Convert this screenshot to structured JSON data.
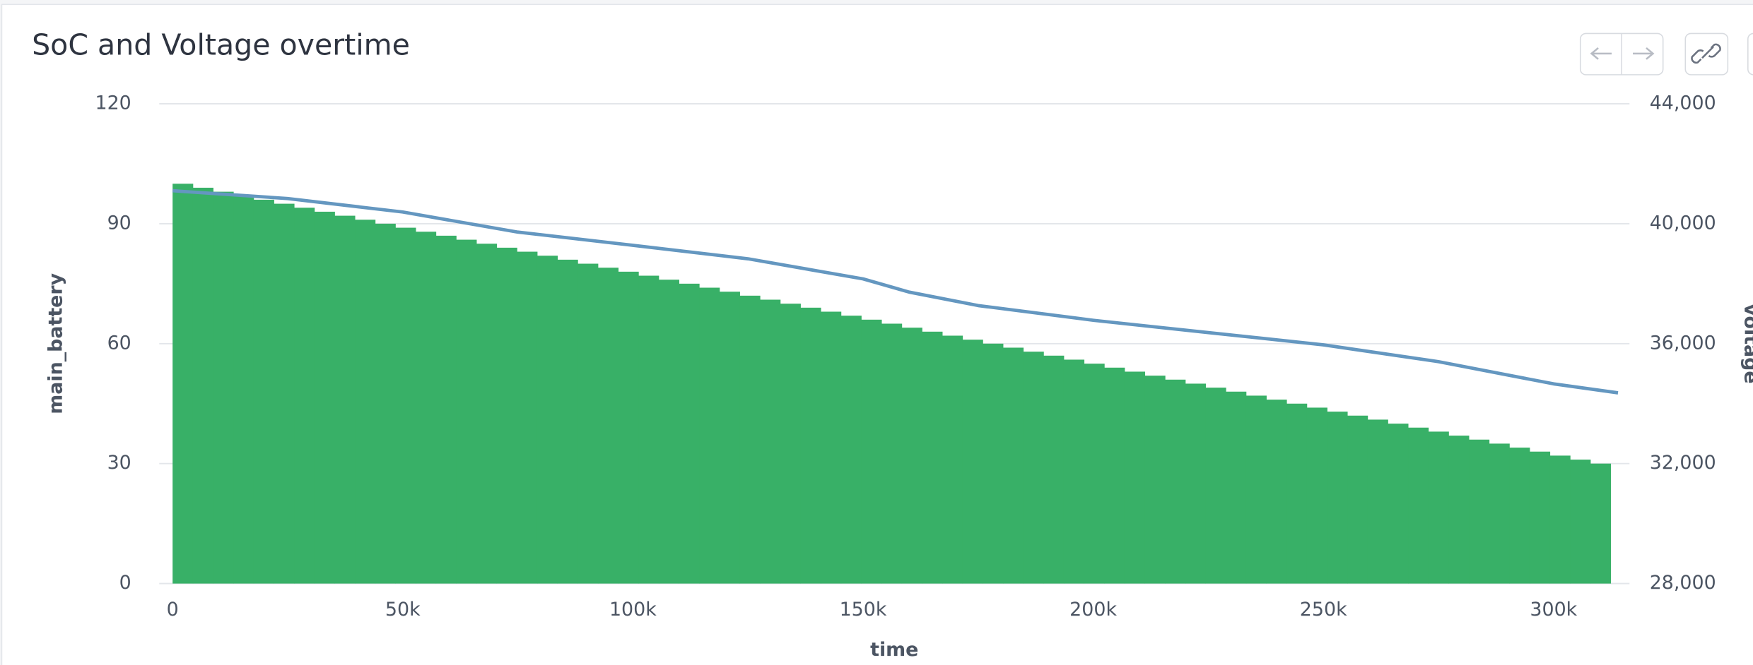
{
  "chart_data": {
    "type": "histogram-line",
    "title": "SoC and Voltage overtime",
    "x_label": "time",
    "y_label": "main_battery",
    "y2_label": "voltage",
    "bins": [
      0,
      4400,
      8800,
      13200,
      17600,
      22000,
      26400,
      30800,
      35200,
      39600,
      44000,
      48400,
      52800,
      57200,
      61600,
      66000,
      70400,
      74800,
      79200,
      83600,
      88000,
      92400,
      96800,
      101200,
      105600,
      110000,
      114400,
      118800,
      123200,
      127600,
      132000,
      136400,
      140800,
      145200,
      149600,
      154000,
      158400,
      162800,
      167200,
      171600,
      176000,
      180400,
      184800,
      189200,
      193600,
      198000,
      202400,
      206800,
      211200,
      215600,
      220000,
      224400,
      228800,
      233200,
      237600,
      242000,
      246400,
      250800,
      255200,
      259600,
      264000,
      268400,
      272800,
      277200,
      281600,
      286000,
      290400,
      294800,
      299200,
      303600,
      308000,
      312400
    ],
    "counts": [
      100,
      99,
      98,
      97,
      96,
      95,
      94,
      93,
      92,
      91,
      90,
      89,
      88,
      87,
      86,
      85,
      84,
      83,
      82,
      81,
      80,
      79,
      78,
      77,
      76,
      75,
      74,
      73,
      72,
      71,
      70,
      69,
      68,
      67,
      66,
      65,
      64,
      63,
      62,
      61,
      60,
      59,
      58,
      57,
      56,
      55,
      54,
      53,
      52,
      51,
      50,
      49,
      48,
      47,
      46,
      45,
      44,
      43,
      42,
      41,
      40,
      39,
      38,
      37,
      36,
      35,
      34,
      33,
      32,
      31,
      30
    ],
    "bar_color": "#38b067",
    "series": [
      {
        "name": "voltage",
        "axis": "y2",
        "color": "#6497c0",
        "x": [
          0,
          25000,
          50000,
          75000,
          100000,
          125000,
          150000,
          160000,
          175000,
          200000,
          225000,
          250000,
          275000,
          300000,
          314000
        ],
        "values": [
          41100,
          40840,
          40390,
          39720,
          39280,
          38830,
          38160,
          37720,
          37270,
          36780,
          36370,
          35960,
          35400,
          34660,
          34360
        ]
      }
    ],
    "xlim": [
      -2900,
      316500
    ],
    "xticks": [
      0,
      {
        "value": 50000,
        "label": "50k"
      },
      {
        "value": 100000,
        "label": "100k"
      },
      {
        "value": 150000,
        "label": "150k"
      },
      {
        "value": 200000,
        "label": "200k"
      },
      {
        "value": 250000,
        "label": "250k"
      },
      {
        "value": 300000,
        "label": "300k"
      }
    ],
    "ylim": [
      0,
      120
    ],
    "yticks": [
      0,
      30,
      60,
      90,
      120
    ],
    "y2lim": [
      28000,
      44000
    ],
    "y2ticks": [
      {
        "value": 28000,
        "label": "28,000"
      },
      {
        "value": 32000,
        "label": "32,000"
      },
      {
        "value": 36000,
        "label": "36,000"
      },
      {
        "value": 40000,
        "label": "40,000"
      },
      {
        "value": 44000,
        "label": "44,000"
      }
    ],
    "grid": true
  }
}
